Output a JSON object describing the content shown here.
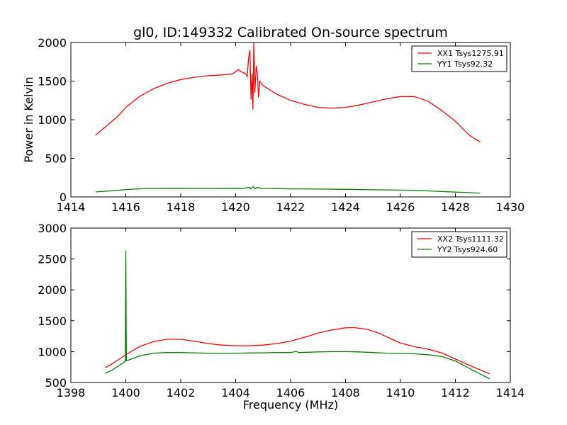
{
  "title": "gl0, ID:149332 Calibrated On-source spectrum",
  "chart_data": [
    {
      "type": "line",
      "ylabel": "Power in Kelvin",
      "xlabel": "",
      "xlim": [
        1414,
        1430
      ],
      "ylim": [
        0,
        2000
      ],
      "xticks": [
        1414,
        1416,
        1418,
        1420,
        1422,
        1424,
        1426,
        1428,
        1430
      ],
      "yticks": [
        0,
        500,
        1000,
        1500,
        2000
      ],
      "legend": "top-right",
      "series": [
        {
          "name": "XX1 Tsys1275.91",
          "color": "#ff0000",
          "points": [
            [
              1414.9,
              800
            ],
            [
              1415.3,
              920
            ],
            [
              1415.7,
              1040
            ],
            [
              1416.0,
              1160
            ],
            [
              1416.5,
              1300
            ],
            [
              1417.0,
              1400
            ],
            [
              1417.5,
              1470
            ],
            [
              1418.0,
              1520
            ],
            [
              1418.5,
              1550
            ],
            [
              1419.0,
              1570
            ],
            [
              1419.5,
              1580
            ],
            [
              1419.9,
              1595
            ],
            [
              1420.1,
              1650
            ],
            [
              1420.2,
              1620
            ],
            [
              1420.35,
              1600
            ],
            [
              1420.42,
              1560
            ],
            [
              1420.47,
              1800
            ],
            [
              1420.52,
              1900
            ],
            [
              1420.56,
              1260
            ],
            [
              1420.6,
              1600
            ],
            [
              1420.63,
              1130
            ],
            [
              1420.66,
              2000
            ],
            [
              1420.7,
              1350
            ],
            [
              1420.75,
              1700
            ],
            [
              1420.8,
              1560
            ],
            [
              1420.83,
              1290
            ],
            [
              1420.88,
              1500
            ],
            [
              1421.0,
              1440
            ],
            [
              1421.5,
              1330
            ],
            [
              1422.0,
              1250
            ],
            [
              1422.5,
              1200
            ],
            [
              1423.0,
              1160
            ],
            [
              1423.5,
              1150
            ],
            [
              1424.0,
              1160
            ],
            [
              1424.5,
              1190
            ],
            [
              1425.0,
              1230
            ],
            [
              1425.5,
              1270
            ],
            [
              1426.0,
              1300
            ],
            [
              1426.5,
              1300
            ],
            [
              1427.0,
              1240
            ],
            [
              1427.5,
              1120
            ],
            [
              1428.0,
              980
            ],
            [
              1428.5,
              800
            ],
            [
              1428.9,
              710
            ]
          ]
        },
        {
          "name": "YY1 Tsys92.32",
          "color": "#008000",
          "points": [
            [
              1414.9,
              65
            ],
            [
              1415.5,
              80
            ],
            [
              1416.0,
              95
            ],
            [
              1416.5,
              105
            ],
            [
              1417.0,
              110
            ],
            [
              1417.5,
              112
            ],
            [
              1418.0,
              112
            ],
            [
              1418.5,
              110
            ],
            [
              1419.0,
              110
            ],
            [
              1419.5,
              108
            ],
            [
              1420.0,
              112
            ],
            [
              1420.3,
              110
            ],
            [
              1420.5,
              125
            ],
            [
              1420.55,
              105
            ],
            [
              1420.6,
              120
            ],
            [
              1420.65,
              135
            ],
            [
              1420.7,
              105
            ],
            [
              1420.8,
              125
            ],
            [
              1420.9,
              110
            ],
            [
              1421.5,
              108
            ],
            [
              1422.0,
              105
            ],
            [
              1423.0,
              102
            ],
            [
              1424.0,
              98
            ],
            [
              1425.0,
              93
            ],
            [
              1426.0,
              88
            ],
            [
              1426.5,
              85
            ],
            [
              1427.0,
              78
            ],
            [
              1427.5,
              70
            ],
            [
              1428.0,
              62
            ],
            [
              1428.5,
              55
            ],
            [
              1428.9,
              50
            ]
          ]
        }
      ]
    },
    {
      "type": "line",
      "ylabel": "",
      "xlabel": "Frequency (MHz)",
      "xlim": [
        1398,
        1414
      ],
      "ylim": [
        500,
        3000
      ],
      "xticks": [
        1398,
        1400,
        1402,
        1404,
        1406,
        1408,
        1410,
        1412,
        1414
      ],
      "yticks": [
        500,
        1000,
        1500,
        2000,
        2500,
        3000
      ],
      "legend": "top-right",
      "series": [
        {
          "name": "XX2 Tsys1111.32",
          "color": "#ff0000",
          "points": [
            [
              1399.25,
              740
            ],
            [
              1399.5,
              800
            ],
            [
              1400.0,
              950
            ],
            [
              1400.5,
              1080
            ],
            [
              1401.0,
              1160
            ],
            [
              1401.5,
              1200
            ],
            [
              1402.0,
              1200
            ],
            [
              1402.5,
              1170
            ],
            [
              1403.0,
              1130
            ],
            [
              1403.5,
              1105
            ],
            [
              1404.0,
              1095
            ],
            [
              1404.5,
              1095
            ],
            [
              1405.0,
              1105
            ],
            [
              1405.5,
              1130
            ],
            [
              1406.0,
              1170
            ],
            [
              1406.5,
              1230
            ],
            [
              1407.0,
              1300
            ],
            [
              1407.5,
              1350
            ],
            [
              1408.0,
              1385
            ],
            [
              1408.3,
              1390
            ],
            [
              1408.8,
              1360
            ],
            [
              1409.2,
              1300
            ],
            [
              1409.7,
              1200
            ],
            [
              1410.0,
              1140
            ],
            [
              1410.5,
              1080
            ],
            [
              1411.0,
              1040
            ],
            [
              1411.5,
              980
            ],
            [
              1412.0,
              880
            ],
            [
              1412.5,
              780
            ],
            [
              1413.25,
              640
            ]
          ]
        },
        {
          "name": "YY2 Tsys924.60",
          "color": "#008000",
          "points": [
            [
              1399.25,
              650
            ],
            [
              1399.5,
              700
            ],
            [
              1399.95,
              830
            ],
            [
              1399.98,
              850
            ],
            [
              1400.0,
              2630
            ],
            [
              1400.02,
              850
            ],
            [
              1400.5,
              930
            ],
            [
              1401.0,
              975
            ],
            [
              1401.5,
              985
            ],
            [
              1402.0,
              985
            ],
            [
              1402.5,
              980
            ],
            [
              1403.0,
              975
            ],
            [
              1403.5,
              970
            ],
            [
              1404.0,
              975
            ],
            [
              1404.5,
              978
            ],
            [
              1405.0,
              980
            ],
            [
              1405.5,
              985
            ],
            [
              1406.0,
              985
            ],
            [
              1406.2,
              1005
            ],
            [
              1406.3,
              985
            ],
            [
              1407.0,
              995
            ],
            [
              1407.5,
              1000
            ],
            [
              1408.0,
              1000
            ],
            [
              1408.5,
              995
            ],
            [
              1409.0,
              985
            ],
            [
              1409.5,
              975
            ],
            [
              1410.0,
              970
            ],
            [
              1410.5,
              965
            ],
            [
              1411.0,
              950
            ],
            [
              1411.5,
              920
            ],
            [
              1412.0,
              850
            ],
            [
              1412.5,
              730
            ],
            [
              1413.25,
              560
            ]
          ]
        }
      ]
    }
  ]
}
